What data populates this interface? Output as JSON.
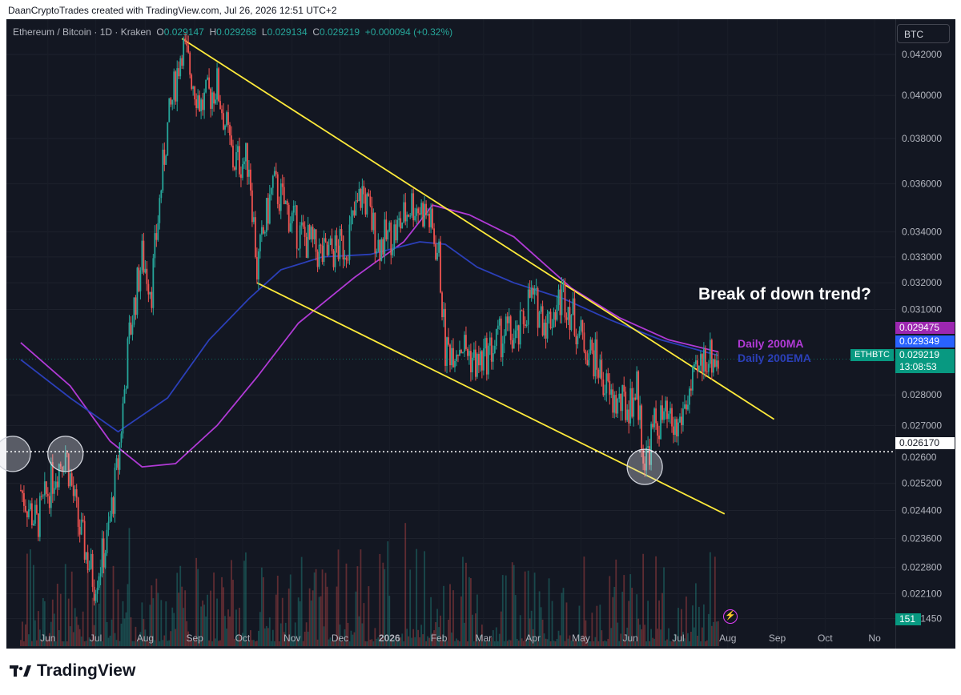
{
  "header": {
    "credit": "DaanCryptoTrades created with TradingView.com, Jul 26, 2026 12:51 UTC+2"
  },
  "legend": {
    "symbol": "Ethereum / Bitcoin · 1D · Kraken",
    "o_label": "O",
    "o": "0.029147",
    "h_label": "H",
    "h": "0.029268",
    "l_label": "L",
    "l": "0.029134",
    "c_label": "C",
    "c": "0.029219",
    "change": "+0.000094 (+0.32%)"
  },
  "price_scale": {
    "currency": "BTC",
    "ticks": [
      "0.042000",
      "0.040000",
      "0.038000",
      "0.036000",
      "0.034000",
      "0.033000",
      "0.032000",
      "0.031000",
      "0.028000",
      "0.027000",
      "0.025200",
      "0.024400",
      "0.023600",
      "0.022800",
      "0.022100",
      "0.021450"
    ],
    "partial_tick": "0.02600",
    "tags": {
      "ma": "0.029475",
      "ema": "0.029349",
      "last": "0.029219",
      "countdown": "13:08:53",
      "support": "0.026170",
      "volume": "151"
    }
  },
  "symbol_tag": "ETHBTC",
  "annotations": {
    "title": "Break of down trend?",
    "ma_label": "Daily 200MA",
    "ema_label": "Daily 200EMA"
  },
  "colors": {
    "background": "#131722",
    "up": "#26a69a",
    "down": "#ef5350",
    "ma": "#b13ad6",
    "ema": "#2b3fb8",
    "trendline": "#ffeb3b",
    "last_tag": "#089981",
    "ma_tag": "#9c27b0",
    "ema_tag": "#2962ff"
  },
  "chart_data": {
    "type": "candlestick",
    "title": "Ethereum / Bitcoin · 1D · Kraken",
    "x_tick_labels": [
      "Jun",
      "Jul",
      "Aug",
      "Sep",
      "Oct",
      "Nov",
      "Dec",
      "2026",
      "Feb",
      "Mar",
      "Apr",
      "May",
      "Jun",
      "Jul",
      "Aug",
      "Sep",
      "Oct",
      "No"
    ],
    "y_scale": "log",
    "ylim": [
      0.0207,
      0.0438
    ],
    "price_path": [
      [
        "2025-05-15",
        0.025
      ],
      [
        "2025-05-25",
        0.024
      ],
      [
        "2025-06-05",
        0.0255
      ],
      [
        "2025-06-12",
        0.0262
      ],
      [
        "2025-06-20",
        0.024
      ],
      [
        "2025-06-30",
        0.0224
      ],
      [
        "2025-07-08",
        0.0235
      ],
      [
        "2025-07-15",
        0.0258
      ],
      [
        "2025-07-22",
        0.03
      ],
      [
        "2025-07-30",
        0.033
      ],
      [
        "2025-08-05",
        0.0318
      ],
      [
        "2025-08-14",
        0.038
      ],
      [
        "2025-08-24",
        0.0425
      ],
      [
        "2025-09-05",
        0.0395
      ],
      [
        "2025-09-15",
        0.0405
      ],
      [
        "2025-09-25",
        0.037
      ],
      [
        "2025-10-05",
        0.037
      ],
      [
        "2025-10-10",
        0.0325
      ],
      [
        "2025-10-20",
        0.036
      ],
      [
        "2025-11-05",
        0.034
      ],
      [
        "2025-11-20",
        0.033
      ],
      [
        "2025-12-05",
        0.0335
      ],
      [
        "2025-12-15",
        0.0357
      ],
      [
        "2025-12-25",
        0.0335
      ],
      [
        "2026-01-05",
        0.034
      ],
      [
        "2026-01-15",
        0.0352
      ],
      [
        "2026-01-25",
        0.0347
      ],
      [
        "2026-02-01",
        0.033
      ],
      [
        "2026-02-05",
        0.0295
      ],
      [
        "2026-02-15",
        0.0298
      ],
      [
        "2026-02-25",
        0.029
      ],
      [
        "2026-03-05",
        0.0295
      ],
      [
        "2026-03-15",
        0.0302
      ],
      [
        "2026-03-22",
        0.0298
      ],
      [
        "2026-03-30",
        0.0315
      ],
      [
        "2026-04-10",
        0.0305
      ],
      [
        "2026-04-20",
        0.0316
      ],
      [
        "2026-05-01",
        0.03
      ],
      [
        "2026-05-10",
        0.0292
      ],
      [
        "2026-05-20",
        0.0278
      ],
      [
        "2026-05-30",
        0.0276
      ],
      [
        "2026-06-05",
        0.0282
      ],
      [
        "2026-06-10",
        0.0258
      ],
      [
        "2026-06-16",
        0.027
      ],
      [
        "2026-06-22",
        0.0272
      ],
      [
        "2026-06-30",
        0.0268
      ],
      [
        "2026-07-06",
        0.0278
      ],
      [
        "2026-07-12",
        0.0285
      ],
      [
        "2026-07-18",
        0.0294
      ],
      [
        "2026-07-26",
        0.0292
      ]
    ],
    "series": [
      {
        "name": "Daily 200MA",
        "last": 0.029475,
        "path": [
          [
            "2025-05-15",
            0.0298
          ],
          [
            "2025-06-15",
            0.0283
          ],
          [
            "2025-07-10",
            0.0265
          ],
          [
            "2025-07-30",
            0.0257
          ],
          [
            "2025-08-20",
            0.0258
          ],
          [
            "2025-09-15",
            0.027
          ],
          [
            "2025-10-10",
            0.0286
          ],
          [
            "2025-11-05",
            0.0305
          ],
          [
            "2025-12-10",
            0.0322
          ],
          [
            "2026-01-10",
            0.0336
          ],
          [
            "2026-01-28",
            0.0351
          ],
          [
            "2026-02-20",
            0.0347
          ],
          [
            "2026-03-20",
            0.0338
          ],
          [
            "2026-04-25",
            0.0318
          ],
          [
            "2026-05-25",
            0.0307
          ],
          [
            "2026-06-25",
            0.0299
          ],
          [
            "2026-07-26",
            0.029475
          ]
        ]
      },
      {
        "name": "Daily 200EMA",
        "last": 0.029349,
        "path": [
          [
            "2025-05-15",
            0.0292
          ],
          [
            "2025-06-15",
            0.0279
          ],
          [
            "2025-07-15",
            0.0268
          ],
          [
            "2025-08-15",
            0.0279
          ],
          [
            "2025-09-10",
            0.0299
          ],
          [
            "2025-10-05",
            0.0314
          ],
          [
            "2025-10-25",
            0.0325
          ],
          [
            "2025-11-20",
            0.033
          ],
          [
            "2025-12-20",
            0.0331
          ],
          [
            "2026-01-20",
            0.0336
          ],
          [
            "2026-02-05",
            0.0335
          ],
          [
            "2026-02-25",
            0.0326
          ],
          [
            "2026-03-20",
            0.032
          ],
          [
            "2026-04-20",
            0.0314
          ],
          [
            "2026-05-20",
            0.0306
          ],
          [
            "2026-06-20",
            0.0299
          ],
          [
            "2026-07-26",
            0.029349
          ]
        ]
      }
    ],
    "trendlines": [
      {
        "from": [
          "2025-08-24",
          0.0428
        ],
        "to": [
          "2026-08-30",
          0.0272
        ]
      },
      {
        "from": [
          "2025-10-10",
          0.032
        ],
        "to": [
          "2026-07-30",
          0.0243
        ]
      }
    ],
    "horizontal_lines": [
      0.02617
    ],
    "highlight_circles": [
      [
        "2025-05-10",
        0.0261
      ],
      [
        "2025-06-12",
        0.0261
      ],
      [
        "2026-06-10",
        0.0257
      ]
    ],
    "volume_last": 151
  }
}
